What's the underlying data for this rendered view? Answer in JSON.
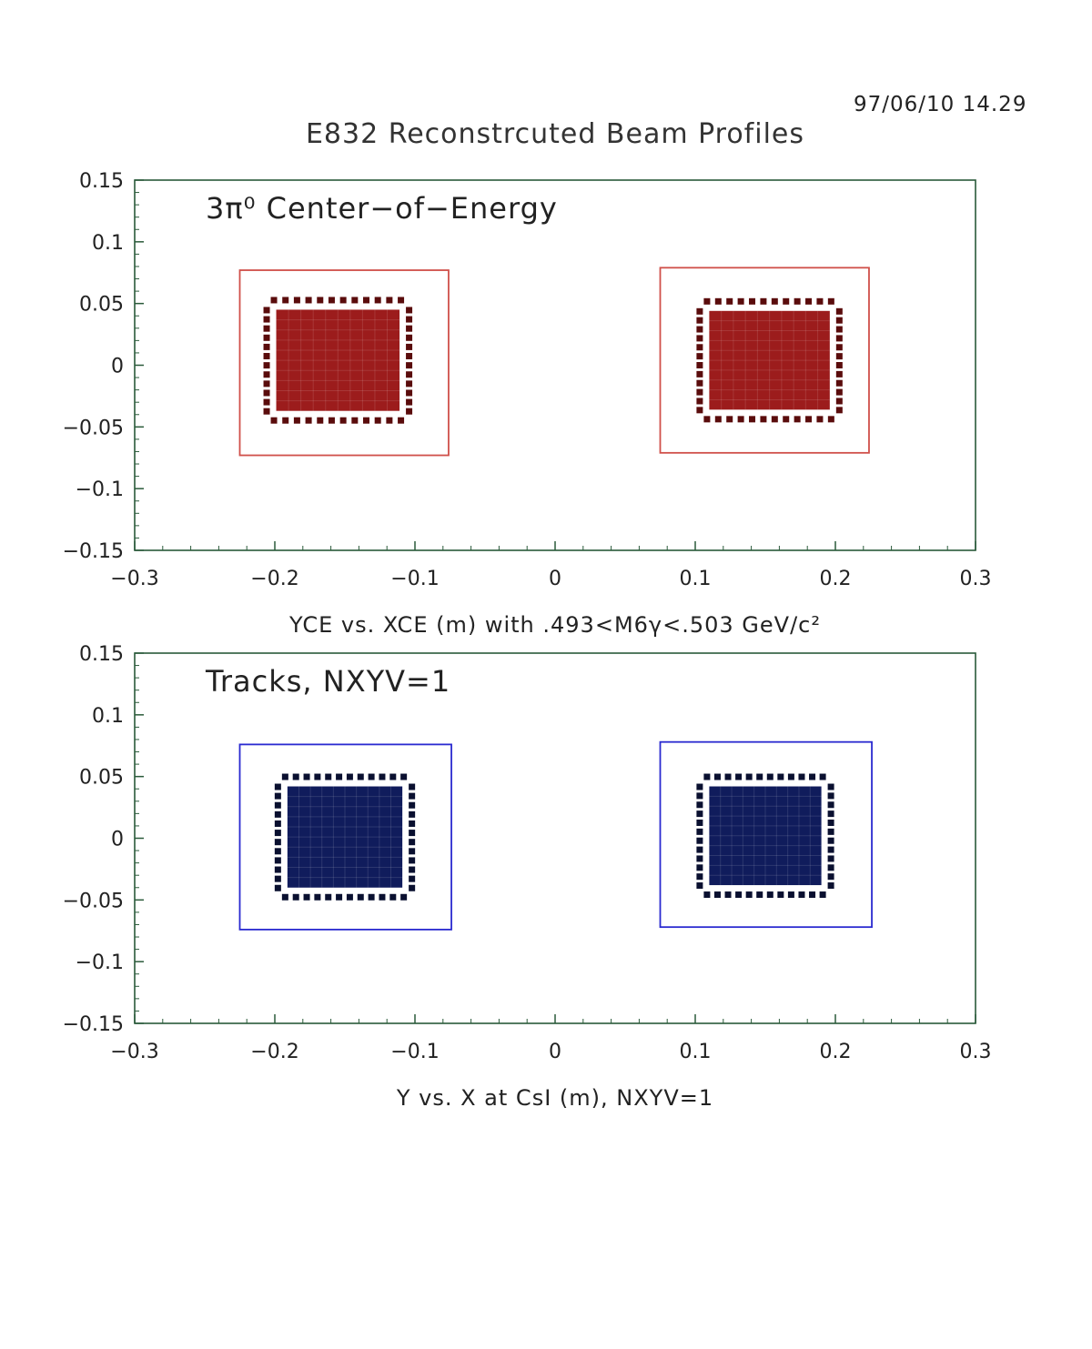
{
  "header": {
    "timestamp": "97/06/10   14.29",
    "title": "E832 Reconstrcuted Beam Profiles"
  },
  "colors": {
    "panel1_fill": "#9c1c1c",
    "panel1_dot": "#5a0c0c",
    "panel1_frame": "#d0504a",
    "panel2_fill": "#101c5c",
    "panel2_dot": "#0a1030",
    "panel2_frame": "#2a2ad0",
    "axis": "#2a5a3a"
  },
  "chart_data": [
    {
      "type": "heatmap",
      "annotation": "3π⁰ Center−of−Energy",
      "xlabel": "YCE vs. XCE (m) with .493<M6γ<.503 GeV/c²",
      "ylabel": "",
      "xlim": [
        -0.3,
        0.3
      ],
      "ylim": [
        -0.15,
        0.15
      ],
      "x_ticks": [
        "−0.3",
        "−0.2",
        "−0.1",
        "0",
        "0.1",
        "0.2",
        "0.3"
      ],
      "y_ticks": [
        "0.15",
        "0.1",
        "0.05",
        "0",
        "−0.05",
        "−0.1",
        "−0.15"
      ],
      "regions": [
        {
          "name": "left beam",
          "frame_x": [
            -0.225,
            -0.076
          ],
          "frame_y": [
            -0.073,
            0.077
          ],
          "fill_x": [
            -0.199,
            -0.111
          ],
          "fill_y": [
            -0.037,
            0.045
          ]
        },
        {
          "name": "right beam",
          "frame_x": [
            0.075,
            0.224
          ],
          "frame_y": [
            -0.071,
            0.079
          ],
          "fill_x": [
            0.11,
            0.196
          ],
          "fill_y": [
            -0.036,
            0.044
          ]
        }
      ]
    },
    {
      "type": "heatmap",
      "annotation": "Tracks, NXYV=1",
      "xlabel": "Y vs. X at CsI (m), NXYV=1",
      "ylabel": "",
      "xlim": [
        -0.3,
        0.3
      ],
      "ylim": [
        -0.15,
        0.15
      ],
      "x_ticks": [
        "−0.3",
        "−0.2",
        "−0.1",
        "0",
        "0.1",
        "0.2",
        "0.3"
      ],
      "y_ticks": [
        "0.15",
        "0.1",
        "0.05",
        "0",
        "−0.05",
        "−0.1",
        "−0.15"
      ],
      "regions": [
        {
          "name": "left beam",
          "frame_x": [
            -0.225,
            -0.074
          ],
          "frame_y": [
            -0.074,
            0.076
          ],
          "fill_x": [
            -0.191,
            -0.109
          ],
          "fill_y": [
            -0.04,
            0.042
          ]
        },
        {
          "name": "right beam",
          "frame_x": [
            0.075,
            0.226
          ],
          "frame_y": [
            -0.072,
            0.078
          ],
          "fill_x": [
            0.11,
            0.19
          ],
          "fill_y": [
            -0.038,
            0.042
          ]
        }
      ]
    }
  ]
}
